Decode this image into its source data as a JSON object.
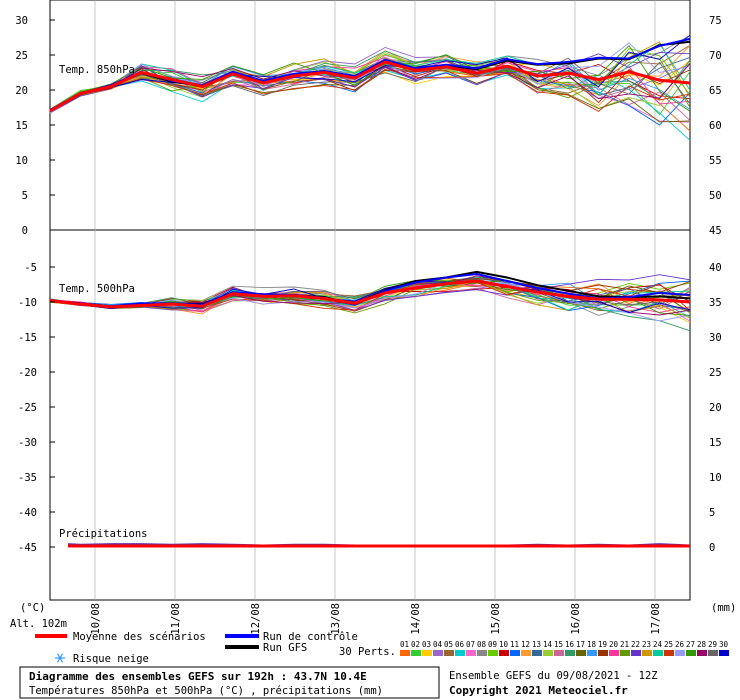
{
  "chart_data": {
    "type": "line",
    "days": [
      "10/08",
      "11/08",
      "12/08",
      "13/08",
      "14/08",
      "15/08",
      "16/08",
      "17/08"
    ],
    "units_left": "(°C)",
    "units_right": "(mm)",
    "altitude": "Alt. 102m",
    "panels": [
      {
        "label": "Temp. 850hPa",
        "left_ticks": [
          "30",
          "25",
          "20",
          "15",
          "10",
          "5",
          "0"
        ],
        "right_ticks": [
          "75",
          "70",
          "65",
          "60",
          "55",
          "50",
          "45"
        ],
        "ylim": [
          0,
          30
        ],
        "series": [
          {
            "name": "Moyenne des scénarios",
            "color": "#ff0000",
            "values": [
              17,
              19.5,
              20.5,
              22.5,
              21.5,
              20.5,
              22.3,
              21,
              22,
              22.5,
              21.7,
              24,
              22.8,
              23.3,
              22.4,
              23.4,
              22,
              22.4,
              21.5,
              22.6,
              21.4,
              21
            ]
          },
          {
            "name": "Run de contrôle",
            "color": "#0000ff",
            "values": [
              17,
              19.5,
              20.7,
              22.6,
              21.3,
              20.7,
              22.6,
              21.3,
              22.3,
              22.7,
              22,
              24.3,
              23.1,
              23.6,
              23.1,
              24.4,
              23.7,
              24,
              24.6,
              24.5,
              26.3,
              27.3
            ]
          },
          {
            "name": "Run GFS",
            "color": "#000000",
            "values": [
              17,
              19.4,
              20.5,
              22.4,
              21.2,
              20.6,
              22.4,
              21.2,
              22.2,
              22.6,
              21.9,
              24.2,
              23,
              23.5,
              23,
              24.2,
              23.6,
              23.8,
              24.5,
              24.4,
              26.4,
              26.9
            ]
          }
        ]
      },
      {
        "label": "Temp. 500hPa",
        "left_ticks": [
          "-5",
          "-10",
          "-15",
          "-20",
          "-25",
          "-30",
          "-35",
          "-40",
          "-45"
        ],
        "right_ticks": [
          "40",
          "35",
          "30",
          "25",
          "20",
          "15",
          "10",
          "5",
          "0"
        ],
        "ylim": [
          -45,
          0
        ],
        "series": [
          {
            "name": "Moyenne des scénarios",
            "color": "#ff0000",
            "values": [
              -9.8,
              -10.3,
              -10.7,
              -10.5,
              -10.3,
              -10.6,
              -8.8,
              -9.2,
              -9.1,
              -9.5,
              -10.2,
              -8.7,
              -8,
              -7.4,
              -7,
              -7.8,
              -8.6,
              -9.2,
              -9.6,
              -9.6,
              -9.7,
              -10
            ]
          },
          {
            "name": "Run de contrôle",
            "color": "#0000ff",
            "values": [
              -9.8,
              -10.2,
              -10.6,
              -10.2,
              -10.2,
              -10.4,
              -8.6,
              -8.9,
              -9,
              -9.4,
              -10.4,
              -8.4,
              -7.2,
              -6.5,
              -6,
              -7,
              -8,
              -8.8,
              -9.5,
              -9.3,
              -8.7,
              -9
            ]
          },
          {
            "name": "Run GFS",
            "color": "#000000",
            "values": [
              -9.8,
              -10.2,
              -10.6,
              -10.3,
              -10.2,
              -10.3,
              -8.7,
              -9,
              -9,
              -9.3,
              -10.3,
              -8.3,
              -7,
              -6.5,
              -5.7,
              -6.5,
              -7.6,
              -8.4,
              -9.2,
              -9.3,
              -9.2,
              -9.5
            ]
          }
        ]
      }
    ],
    "precip_label": "Précipitations",
    "precip_mm": [
      0.2,
      0.1,
      0.2,
      0.2,
      0.1,
      0.2,
      0.1,
      0,
      0.1,
      0.1,
      0,
      0,
      0,
      0,
      0,
      0,
      0.1,
      0,
      0.1,
      0,
      0.2,
      0
    ]
  },
  "legend": {
    "mean": "Moyenne des scénarios",
    "control": "Run de contrôle",
    "gfs": "Run GFS",
    "snow": "Risque neige",
    "perts": "30 Perts.",
    "perts_numbers": [
      "01",
      "02",
      "03",
      "04",
      "05",
      "06",
      "07",
      "08",
      "09",
      "10",
      "11",
      "12",
      "13",
      "14",
      "15",
      "16",
      "17",
      "18",
      "19",
      "20",
      "21",
      "22",
      "23",
      "24",
      "25",
      "26",
      "27",
      "28",
      "29",
      "30"
    ],
    "perts_colors": [
      "#ff6600",
      "#33cc33",
      "#ffcc00",
      "#9966cc",
      "#996633",
      "#00cccc",
      "#ff66cc",
      "#888888",
      "#66cc00",
      "#cc0000",
      "#0066ff",
      "#ff9933",
      "#336699",
      "#99cc33",
      "#cc6699",
      "#339966",
      "#666600",
      "#3399ff",
      "#993300",
      "#ff3399",
      "#669900",
      "#6633cc",
      "#cc9900",
      "#00cc99",
      "#cc3300",
      "#9999ff",
      "#339900",
      "#990066",
      "#666666",
      "#0000cc"
    ]
  },
  "title": "Diagramme des ensembles GEFS sur 192h : 43.7N 10.4E",
  "subtitle": "Températures 850hPa et 500hPa (°C) , précipitations (mm)",
  "run_info": "Ensemble GEFS du 09/08/2021 - 12Z",
  "copyright": "Copyright 2021 Meteociel.fr"
}
